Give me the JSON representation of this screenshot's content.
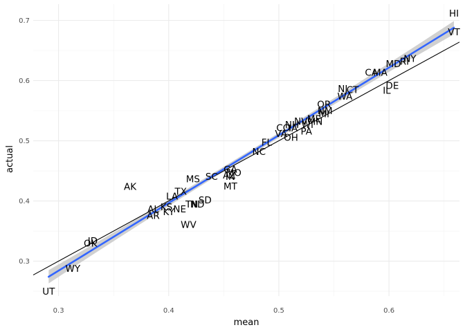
{
  "chart_data": {
    "type": "scatter",
    "xlabel": "mean",
    "ylabel": "actual",
    "xlim": [
      0.277,
      0.664
    ],
    "ylim": [
      0.242,
      0.727
    ],
    "x_ticks": [
      0.3,
      0.4,
      0.5,
      0.6
    ],
    "x_tick_labels": [
      "0.3",
      "0.4",
      "0.5",
      "0.6"
    ],
    "y_ticks": [
      0.3,
      0.4,
      0.5,
      0.6,
      0.7
    ],
    "y_tick_labels": [
      "0.3",
      "0.4",
      "0.5",
      "0.6",
      "0.7"
    ],
    "grid": true,
    "points": [
      {
        "label": "HI",
        "x": 0.659,
        "y": 0.712
      },
      {
        "label": "VT",
        "x": 0.659,
        "y": 0.681
      },
      {
        "label": "NY",
        "x": 0.619,
        "y": 0.637
      },
      {
        "label": "RI",
        "x": 0.614,
        "y": 0.632
      },
      {
        "label": "MD",
        "x": 0.604,
        "y": 0.628
      },
      {
        "label": "MA",
        "x": 0.592,
        "y": 0.614
      },
      {
        "label": "CA",
        "x": 0.584,
        "y": 0.614
      },
      {
        "label": "DE",
        "x": 0.603,
        "y": 0.592
      },
      {
        "label": "IL",
        "x": 0.598,
        "y": 0.584
      },
      {
        "label": "NJ",
        "x": 0.558,
        "y": 0.587
      },
      {
        "label": "CT",
        "x": 0.567,
        "y": 0.585
      },
      {
        "label": "WA",
        "x": 0.56,
        "y": 0.574
      },
      {
        "label": "OR",
        "x": 0.541,
        "y": 0.561
      },
      {
        "label": "NM",
        "x": 0.542,
        "y": 0.55
      },
      {
        "label": "MI",
        "x": 0.541,
        "y": 0.545
      },
      {
        "label": "ME",
        "x": 0.532,
        "y": 0.537
      },
      {
        "label": "MN",
        "x": 0.533,
        "y": 0.532
      },
      {
        "label": "NV",
        "x": 0.52,
        "y": 0.533
      },
      {
        "label": "WI",
        "x": 0.526,
        "y": 0.527
      },
      {
        "label": "NH",
        "x": 0.512,
        "y": 0.527
      },
      {
        "label": "CO",
        "x": 0.504,
        "y": 0.522
      },
      {
        "label": "IA",
        "x": 0.513,
        "y": 0.521
      },
      {
        "label": "PA",
        "x": 0.525,
        "y": 0.516
      },
      {
        "label": "VA",
        "x": 0.502,
        "y": 0.512
      },
      {
        "label": "OH",
        "x": 0.511,
        "y": 0.506
      },
      {
        "label": "FL",
        "x": 0.489,
        "y": 0.498
      },
      {
        "label": "NC",
        "x": 0.482,
        "y": 0.482
      },
      {
        "label": "GA",
        "x": 0.456,
        "y": 0.453
      },
      {
        "label": "MO",
        "x": 0.459,
        "y": 0.447
      },
      {
        "label": "AZ",
        "x": 0.455,
        "y": 0.443
      },
      {
        "label": "IN",
        "x": 0.456,
        "y": 0.441
      },
      {
        "label": "SC",
        "x": 0.439,
        "y": 0.441
      },
      {
        "label": "MS",
        "x": 0.422,
        "y": 0.437
      },
      {
        "label": "MT",
        "x": 0.456,
        "y": 0.425
      },
      {
        "label": "AK",
        "x": 0.365,
        "y": 0.424
      },
      {
        "label": "TX",
        "x": 0.411,
        "y": 0.416
      },
      {
        "label": "LA",
        "x": 0.403,
        "y": 0.408
      },
      {
        "label": "SD",
        "x": 0.433,
        "y": 0.402
      },
      {
        "label": "TN",
        "x": 0.421,
        "y": 0.395
      },
      {
        "label": "ND",
        "x": 0.426,
        "y": 0.395
      },
      {
        "label": "KS",
        "x": 0.398,
        "y": 0.39
      },
      {
        "label": "AL",
        "x": 0.386,
        "y": 0.387
      },
      {
        "label": "NE",
        "x": 0.41,
        "y": 0.387
      },
      {
        "label": "KY",
        "x": 0.4,
        "y": 0.382
      },
      {
        "label": "AR",
        "x": 0.386,
        "y": 0.376
      },
      {
        "label": "WV",
        "x": 0.418,
        "y": 0.361
      },
      {
        "label": "ID",
        "x": 0.331,
        "y": 0.334
      },
      {
        "label": "OK",
        "x": 0.329,
        "y": 0.33
      },
      {
        "label": "WY",
        "x": 0.313,
        "y": 0.288
      },
      {
        "label": "UT",
        "x": 0.291,
        "y": 0.25
      }
    ],
    "fit_line": {
      "x": [
        0.291,
        0.659
      ],
      "y": [
        0.274,
        0.688
      ],
      "color": "#3366ff",
      "band_color": "#c8c8c8"
    },
    "reference_line": {
      "x": [
        0.277,
        0.664
      ],
      "y": [
        0.277,
        0.664
      ],
      "color": "#000000"
    }
  }
}
